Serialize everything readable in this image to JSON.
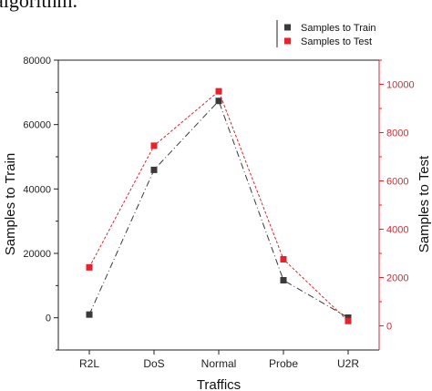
{
  "caption_fragment": "algorithm.",
  "chart_data": {
    "type": "line",
    "title": "",
    "xlabel": "Traffics",
    "ylabel": "Samples to Train",
    "y2label": "Samples to Test",
    "categories": [
      "R2L",
      "DoS",
      "Normal",
      "Probe",
      "U2R"
    ],
    "ylim": [
      -10000,
      80000
    ],
    "yticks": [
      0,
      20000,
      40000,
      60000,
      80000
    ],
    "y2lim": [
      -1000,
      11000
    ],
    "y2ticks": [
      0,
      2000,
      4000,
      6000,
      8000,
      10000
    ],
    "legend_position": "top-right",
    "series": [
      {
        "name": "Samples to Train",
        "axis": "left",
        "color": "#3a3a3a",
        "marker": "square",
        "values": [
          995,
          45927,
          67343,
          11656,
          52
        ]
      },
      {
        "name": "Samples to Test",
        "axis": "right",
        "color": "#e8212b",
        "marker": "square",
        "values": [
          2421,
          7458,
          9711,
          2754,
          200
        ]
      }
    ],
    "right_axis_color": "#e8212b"
  }
}
